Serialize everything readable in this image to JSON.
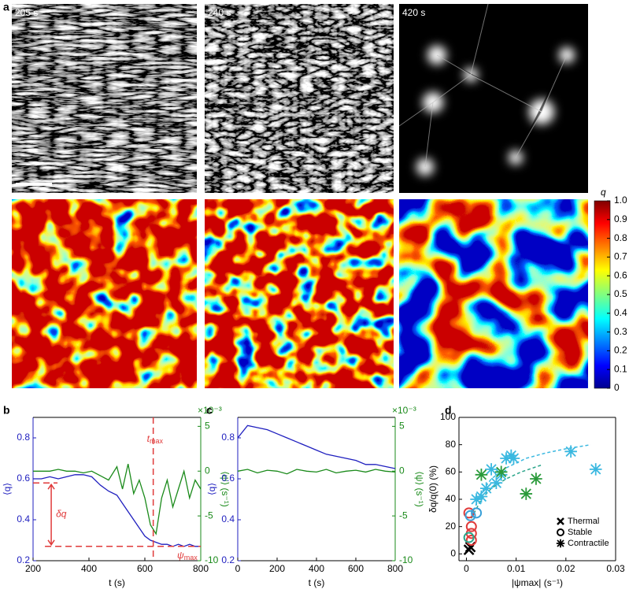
{
  "figure": {
    "panel_label": "a",
    "time_labels": [
      "205 s",
      "240 s",
      "420 s"
    ],
    "colorbar": {
      "label": "q",
      "lim": [
        0,
        1
      ],
      "ticks": [
        0,
        0.1,
        0.2,
        0.3,
        0.4,
        0.5,
        0.6,
        0.7,
        0.8,
        0.9,
        {
          "value": 1,
          "label": "1.0"
        }
      ]
    }
  },
  "chart_data": [
    {
      "type": "line",
      "panel": "b",
      "xlabel": "t (s)",
      "ylabel": "⟨q⟩",
      "y2label": "⟨ψ⟩ (s⁻¹)",
      "y2multiplier": "×10⁻³",
      "x": [
        200,
        230,
        260,
        290,
        320,
        350,
        380,
        410,
        440,
        470,
        500,
        520,
        540,
        560,
        580,
        600,
        620,
        640,
        660,
        680,
        700,
        720,
        740,
        760,
        780,
        800
      ],
      "xlim": [
        200,
        800
      ],
      "xticks": [
        200,
        400,
        600,
        800
      ],
      "ylim": [
        0.2,
        0.9
      ],
      "yticks": [
        0.2,
        0.4,
        0.6,
        0.8
      ],
      "y2lim": [
        -10,
        6
      ],
      "y2ticks": [
        -10,
        -5,
        0,
        5
      ],
      "series": [
        {
          "color": "#1f1fbf",
          "values": [
            0.6,
            0.6,
            0.61,
            0.6,
            0.61,
            0.62,
            0.62,
            0.61,
            0.57,
            0.54,
            0.52,
            0.48,
            0.44,
            0.4,
            0.36,
            0.32,
            0.3,
            0.29,
            0.28,
            0.28,
            0.27,
            0.28,
            0.27,
            0.28,
            0.27,
            0.27
          ]
        },
        {
          "color": "#1a8a1a",
          "axis": "y2",
          "values": [
            0,
            0,
            0,
            0.2,
            0,
            0,
            -0.2,
            0,
            -0.5,
            -1,
            0.5,
            -2,
            0.8,
            -2.5,
            -1,
            -3,
            -6,
            -7,
            -3,
            -1,
            -4,
            -2,
            0,
            -3,
            -1,
            -2
          ]
        }
      ],
      "annotations": {
        "color": "#e03a3a",
        "delta_q": {
          "text": "δq",
          "x": 265,
          "from": 0.58,
          "to": 0.27
        },
        "t_max": {
          "text": "t",
          "sub": "max",
          "value": 630
        },
        "psi_max": {
          "text": "ψ",
          "sub": "max",
          "value": 0.27
        }
      }
    },
    {
      "type": "line",
      "panel": "c",
      "xlabel": "t (s)",
      "ylabel": "⟨q⟩",
      "y2label": "⟨ψ⟩ (s⁻¹)",
      "y2multiplier": "×10⁻³",
      "x": [
        0,
        50,
        100,
        150,
        200,
        250,
        300,
        350,
        400,
        450,
        500,
        550,
        600,
        650,
        700,
        750,
        800
      ],
      "xlim": [
        0,
        800
      ],
      "xticks": [
        0,
        200,
        400,
        600,
        800
      ],
      "ylim": [
        0.2,
        0.9
      ],
      "yticks": [
        0.2,
        0.4,
        0.6,
        0.8
      ],
      "y2lim": [
        -10,
        6
      ],
      "y2ticks": [
        -10,
        -5,
        0,
        5
      ],
      "series": [
        {
          "color": "#1f1fbf",
          "values": [
            0.8,
            0.86,
            0.85,
            0.84,
            0.82,
            0.8,
            0.78,
            0.76,
            0.74,
            0.72,
            0.71,
            0.7,
            0.69,
            0.67,
            0.67,
            0.66,
            0.65
          ]
        },
        {
          "color": "#1a8a1a",
          "axis": "y2",
          "values": [
            0,
            0.2,
            -0.2,
            0.1,
            0,
            -0.3,
            0.2,
            0,
            -0.1,
            0.2,
            -0.2,
            0,
            0.1,
            -0.1,
            0.2,
            0,
            -0.1
          ]
        }
      ]
    },
    {
      "type": "scatter",
      "panel": "d",
      "xlabel": "|ψmax| (s⁻¹)",
      "ylabel": "δq/q(0) (%)",
      "xlim": [
        -0.0015,
        0.03
      ],
      "xticks": [
        0,
        0.01,
        0.02,
        0.03
      ],
      "ylim": [
        -5,
        100
      ],
      "yticks": [
        0,
        20,
        40,
        60,
        80,
        100
      ],
      "series": [
        {
          "name": "Thermal",
          "marker": "x",
          "color": "#000000",
          "x": [
            0.0005,
            0.0008
          ],
          "values": [
            3,
            5
          ],
          "point_colors": [
            "#000000",
            "#000000"
          ]
        },
        {
          "name": "Stable",
          "marker": "o",
          "color": "#000000",
          "x": [
            0.0005,
            0.0008,
            0.001,
            0.001,
            0.002,
            0.0005,
            0.001
          ],
          "values": [
            30,
            28,
            15,
            10,
            30,
            12,
            20
          ],
          "point_colors": [
            "#e03a3a",
            "#3aa0d8",
            "#e03a3a",
            "#e03a3a",
            "#3aa0d8",
            "#2aa58a",
            "#e03a3a"
          ]
        },
        {
          "name": "Contractile",
          "marker": "*",
          "color": "#000000",
          "x": [
            0.002,
            0.003,
            0.004,
            0.005,
            0.006,
            0.007,
            0.008,
            0.009,
            0.0095,
            0.021,
            0.026,
            0.003,
            0.007,
            0.014,
            0.012
          ],
          "values": [
            40,
            42,
            48,
            62,
            52,
            58,
            70,
            72,
            70,
            75,
            62,
            58,
            60,
            55,
            44
          ],
          "point_colors": [
            "#3ab8e0",
            "#3ab8e0",
            "#3ab8e0",
            "#3ab8e0",
            "#3ab8e0",
            "#3ab8e0",
            "#3ab8e0",
            "#3ab8e0",
            "#3ab8e0",
            "#3ab8e0",
            "#3ab8e0",
            "#2a9a3a",
            "#2a9a3a",
            "#2a9a3a",
            "#2a9a3a"
          ]
        }
      ],
      "fits": [
        {
          "color": "#3ab8e0",
          "x": [
            0.001,
            0.003,
            0.005,
            0.008,
            0.012,
            0.016,
            0.02,
            0.025
          ],
          "values": [
            28,
            45,
            55,
            63,
            70,
            74,
            77,
            80
          ]
        },
        {
          "color": "#2aa58a",
          "x": [
            0.001,
            0.003,
            0.005,
            0.008,
            0.011,
            0.015
          ],
          "values": [
            26,
            40,
            48,
            55,
            60,
            65
          ]
        }
      ]
    }
  ]
}
